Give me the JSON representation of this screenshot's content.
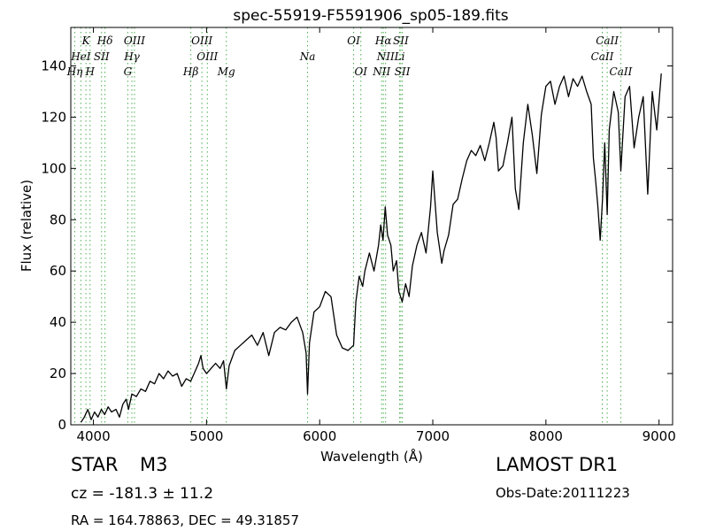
{
  "chart_data": {
    "type": "line",
    "title": "spec-55919-F5591906_sp05-189.fits",
    "xlabel": "Wavelength (Å)",
    "ylabel": "Flux (relative)",
    "xlim": [
      3800,
      9120
    ],
    "ylim": [
      0,
      155
    ],
    "xticks": [
      4000,
      5000,
      6000,
      7000,
      8000,
      9000
    ],
    "yticks": [
      0,
      20,
      40,
      60,
      80,
      100,
      120,
      140
    ],
    "grid": false,
    "line_color": "#000000",
    "marker_line_color": "#4caf50",
    "series": [
      {
        "points": [
          [
            3890,
            1
          ],
          [
            3920,
            3
          ],
          [
            3950,
            6
          ],
          [
            3980,
            2
          ],
          [
            4010,
            5
          ],
          [
            4040,
            3
          ],
          [
            4070,
            6
          ],
          [
            4100,
            4
          ],
          [
            4130,
            7
          ],
          [
            4160,
            5
          ],
          [
            4200,
            6
          ],
          [
            4230,
            3
          ],
          [
            4260,
            8
          ],
          [
            4290,
            10
          ],
          [
            4310,
            6
          ],
          [
            4340,
            12
          ],
          [
            4380,
            11
          ],
          [
            4420,
            14
          ],
          [
            4460,
            13
          ],
          [
            4500,
            17
          ],
          [
            4540,
            16
          ],
          [
            4580,
            20
          ],
          [
            4620,
            18
          ],
          [
            4660,
            21
          ],
          [
            4700,
            19
          ],
          [
            4740,
            20
          ],
          [
            4780,
            15
          ],
          [
            4820,
            18
          ],
          [
            4860,
            17
          ],
          [
            4900,
            21
          ],
          [
            4930,
            24
          ],
          [
            4950,
            27
          ],
          [
            4970,
            22
          ],
          [
            5000,
            20
          ],
          [
            5040,
            22
          ],
          [
            5080,
            24
          ],
          [
            5120,
            22
          ],
          [
            5150,
            25
          ],
          [
            5175,
            14
          ],
          [
            5200,
            23
          ],
          [
            5250,
            29
          ],
          [
            5300,
            31
          ],
          [
            5350,
            33
          ],
          [
            5400,
            35
          ],
          [
            5450,
            31
          ],
          [
            5500,
            36
          ],
          [
            5550,
            27
          ],
          [
            5600,
            36
          ],
          [
            5650,
            38
          ],
          [
            5700,
            37
          ],
          [
            5750,
            40
          ],
          [
            5800,
            42
          ],
          [
            5850,
            36
          ],
          [
            5880,
            28
          ],
          [
            5893,
            12
          ],
          [
            5910,
            32
          ],
          [
            5950,
            44
          ],
          [
            6000,
            46
          ],
          [
            6050,
            52
          ],
          [
            6100,
            50
          ],
          [
            6150,
            35
          ],
          [
            6200,
            30
          ],
          [
            6250,
            29
          ],
          [
            6300,
            31
          ],
          [
            6320,
            48
          ],
          [
            6350,
            58
          ],
          [
            6380,
            54
          ],
          [
            6400,
            60
          ],
          [
            6440,
            67
          ],
          [
            6480,
            60
          ],
          [
            6520,
            70
          ],
          [
            6540,
            78
          ],
          [
            6560,
            72
          ],
          [
            6580,
            85
          ],
          [
            6600,
            74
          ],
          [
            6630,
            70
          ],
          [
            6650,
            60
          ],
          [
            6680,
            64
          ],
          [
            6700,
            52
          ],
          [
            6730,
            48
          ],
          [
            6760,
            55
          ],
          [
            6790,
            50
          ],
          [
            6820,
            62
          ],
          [
            6860,
            70
          ],
          [
            6900,
            75
          ],
          [
            6940,
            67
          ],
          [
            6980,
            85
          ],
          [
            7000,
            99
          ],
          [
            7040,
            75
          ],
          [
            7080,
            63
          ],
          [
            7100,
            68
          ],
          [
            7140,
            74
          ],
          [
            7180,
            86
          ],
          [
            7220,
            88
          ],
          [
            7260,
            96
          ],
          [
            7300,
            103
          ],
          [
            7340,
            107
          ],
          [
            7380,
            105
          ],
          [
            7420,
            109
          ],
          [
            7460,
            103
          ],
          [
            7500,
            110
          ],
          [
            7540,
            118
          ],
          [
            7560,
            112
          ],
          [
            7580,
            99
          ],
          [
            7620,
            101
          ],
          [
            7660,
            110
          ],
          [
            7700,
            120
          ],
          [
            7730,
            92
          ],
          [
            7760,
            84
          ],
          [
            7800,
            110
          ],
          [
            7840,
            125
          ],
          [
            7880,
            113
          ],
          [
            7920,
            98
          ],
          [
            7960,
            121
          ],
          [
            8000,
            132
          ],
          [
            8040,
            134
          ],
          [
            8080,
            125
          ],
          [
            8120,
            132
          ],
          [
            8160,
            136
          ],
          [
            8200,
            128
          ],
          [
            8240,
            135
          ],
          [
            8280,
            132
          ],
          [
            8320,
            136
          ],
          [
            8360,
            130
          ],
          [
            8400,
            125
          ],
          [
            8420,
            104
          ],
          [
            8440,
            95
          ],
          [
            8460,
            85
          ],
          [
            8480,
            72
          ],
          [
            8500,
            88
          ],
          [
            8520,
            110
          ],
          [
            8542,
            82
          ],
          [
            8560,
            115
          ],
          [
            8600,
            130
          ],
          [
            8640,
            122
          ],
          [
            8662,
            99
          ],
          [
            8700,
            128
          ],
          [
            8740,
            132
          ],
          [
            8780,
            108
          ],
          [
            8820,
            120
          ],
          [
            8860,
            128
          ],
          [
            8900,
            90
          ],
          [
            8940,
            130
          ],
          [
            8980,
            115
          ],
          [
            9020,
            137
          ]
        ]
      }
    ],
    "line_ids": [
      {
        "wave": 3934,
        "label": "K",
        "row": 1
      },
      {
        "wave": 3889,
        "label": "HeI",
        "row": 2
      },
      {
        "wave": 3835,
        "label": "Hη",
        "row": 3
      },
      {
        "wave": 3970,
        "label": "H",
        "row": 3
      },
      {
        "wave": 4102,
        "label": "Hδ",
        "row": 1
      },
      {
        "wave": 4072,
        "label": "SII",
        "row": 2
      },
      {
        "wave": 4363,
        "label": "OIII",
        "row": 1
      },
      {
        "wave": 4340,
        "label": "Hγ",
        "row": 2
      },
      {
        "wave": 4304,
        "label": "G",
        "row": 3
      },
      {
        "wave": 4959,
        "label": "OIII",
        "row": 1
      },
      {
        "wave": 5007,
        "label": "OIII",
        "row": 2
      },
      {
        "wave": 4861,
        "label": "Hβ",
        "row": 3
      },
      {
        "wave": 5175,
        "label": "Mg",
        "row": 3
      },
      {
        "wave": 5893,
        "label": "Na",
        "row": 2
      },
      {
        "wave": 6300,
        "label": "OI",
        "row": 1
      },
      {
        "wave": 6364,
        "label": "OI",
        "row": 3
      },
      {
        "wave": 6563,
        "label": "Hα",
        "row": 1
      },
      {
        "wave": 6717,
        "label": "SII",
        "row": 1
      },
      {
        "wave": 6583,
        "label": "NII",
        "row": 2
      },
      {
        "wave": 6707,
        "label": "Li",
        "row": 2
      },
      {
        "wave": 6548,
        "label": "NII",
        "row": 3
      },
      {
        "wave": 6731,
        "label": "SII",
        "row": 3
      },
      {
        "wave": 8542,
        "label": "CaII",
        "row": 1
      },
      {
        "wave": 8498,
        "label": "CaII",
        "row": 2
      },
      {
        "wave": 8662,
        "label": "CaII",
        "row": 3
      }
    ]
  },
  "info": {
    "object_class": "STAR",
    "subclass": "M3",
    "redshift": "cz = -181.3 ± 11.2",
    "coordinates": "RA = 164.78863, DEC = 49.31857",
    "survey": "LAMOST DR1",
    "obs_date": "Obs-Date:20111223"
  }
}
